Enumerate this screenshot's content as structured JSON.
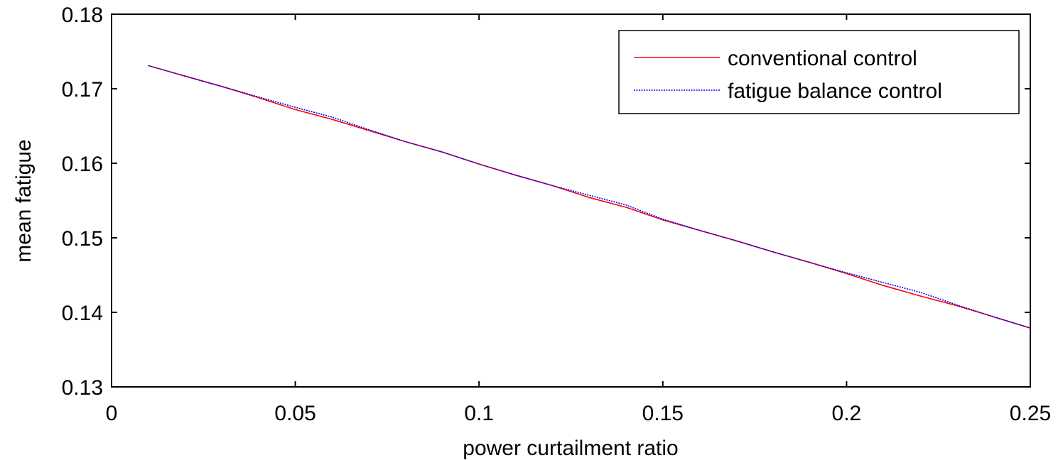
{
  "chart_data": {
    "type": "line",
    "title": "",
    "xlabel": "power curtailment ratio",
    "ylabel": "mean fatigue",
    "xlim": [
      0,
      0.25
    ],
    "ylim": [
      0.13,
      0.18
    ],
    "xticks": [
      0,
      0.05,
      0.1,
      0.15,
      0.2,
      0.25
    ],
    "yticks": [
      0.13,
      0.14,
      0.15,
      0.16,
      0.17,
      0.18
    ],
    "xtick_labels": [
      "0",
      "0.05",
      "0.1",
      "0.15",
      "0.2",
      "0.25"
    ],
    "ytick_labels": [
      "0.13",
      "0.14",
      "0.15",
      "0.16",
      "0.17",
      "0.18"
    ],
    "grid": false,
    "legend_position": "top-right",
    "series": [
      {
        "name": "conventional control",
        "color": "#ff0000",
        "style": "solid",
        "x": [
          0.01,
          0.02,
          0.03,
          0.04,
          0.05,
          0.06,
          0.07,
          0.08,
          0.09,
          0.1,
          0.11,
          0.12,
          0.13,
          0.14,
          0.15,
          0.16,
          0.17,
          0.18,
          0.19,
          0.2,
          0.21,
          0.22,
          0.23,
          0.24,
          0.25
        ],
        "y": [
          0.1731,
          0.1717,
          0.1703,
          0.1688,
          0.1672,
          0.1659,
          0.1644,
          0.1629,
          0.1615,
          0.1599,
          0.1584,
          0.157,
          0.1554,
          0.1541,
          0.1524,
          0.151,
          0.1496,
          0.1481,
          0.1467,
          0.1452,
          0.1436,
          0.1422,
          0.1409,
          0.1394,
          0.1379
        ]
      },
      {
        "name": "fatigue balance control",
        "color": "#0000ff",
        "style": "dotted",
        "x": [
          0.01,
          0.02,
          0.03,
          0.04,
          0.05,
          0.06,
          0.07,
          0.08,
          0.09,
          0.1,
          0.11,
          0.12,
          0.13,
          0.14,
          0.15,
          0.16,
          0.17,
          0.18,
          0.19,
          0.2,
          0.21,
          0.22,
          0.23,
          0.24,
          0.25
        ],
        "y": [
          0.1731,
          0.1717,
          0.1703,
          0.1689,
          0.1675,
          0.1662,
          0.1645,
          0.1629,
          0.1615,
          0.1599,
          0.1584,
          0.157,
          0.1557,
          0.1544,
          0.1525,
          0.151,
          0.1496,
          0.1481,
          0.1467,
          0.1453,
          0.144,
          0.1427,
          0.141,
          0.1394,
          0.1379
        ]
      }
    ]
  }
}
